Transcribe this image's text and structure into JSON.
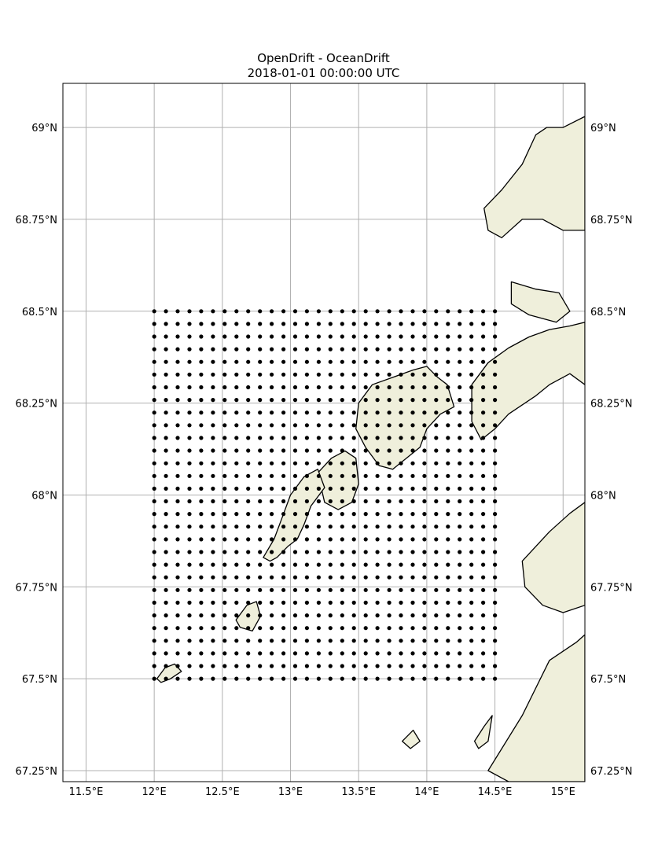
{
  "title": "OpenDrift - OceanDrift",
  "subtitle": "2018-01-01 00:00:00 UTC",
  "colors": {
    "land": "#efefdb",
    "coast": "#000000",
    "grid": "#b0b0b0",
    "particle": "#000000"
  },
  "map": {
    "lon_range": [
      11.33,
      15.16
    ],
    "lat_range": [
      67.22,
      69.12
    ],
    "grid": true,
    "lon_ticks": [
      11.5,
      12.0,
      12.5,
      13.0,
      13.5,
      14.0,
      14.5,
      15.0
    ],
    "lon_tick_labels": [
      "11.5°E",
      "12°E",
      "12.5°E",
      "13°E",
      "13.5°E",
      "14°E",
      "14.5°E",
      "15°E"
    ],
    "lat_ticks": [
      69.0,
      68.75,
      68.5,
      68.25,
      68.0,
      67.75,
      67.5,
      67.25
    ],
    "lat_tick_labels": [
      "69°N",
      "68.75°N",
      "68.5°N",
      "68.25°N",
      "68°N",
      "67.75°N",
      "67.5°N",
      "67.25°N"
    ]
  },
  "particles": {
    "lon_start": 12.0,
    "lon_end": 14.5,
    "lon_count": 30,
    "lat_start": 67.5,
    "lat_end": 68.5,
    "lat_count": 30
  },
  "land_polygons": [
    {
      "name": "mainland-north",
      "points": [
        [
          14.55,
          68.83
        ],
        [
          14.7,
          68.9
        ],
        [
          14.8,
          68.98
        ],
        [
          14.88,
          69.0
        ],
        [
          15.0,
          69.0
        ],
        [
          15.16,
          69.03
        ],
        [
          15.16,
          68.72
        ],
        [
          15.0,
          68.72
        ],
        [
          14.85,
          68.75
        ],
        [
          14.7,
          68.75
        ],
        [
          14.55,
          68.7
        ],
        [
          14.45,
          68.72
        ],
        [
          14.42,
          68.78
        ]
      ]
    },
    {
      "name": "island-hinnoya-south",
      "points": [
        [
          14.62,
          68.58
        ],
        [
          14.8,
          68.56
        ],
        [
          14.97,
          68.55
        ],
        [
          15.05,
          68.5
        ],
        [
          14.95,
          68.47
        ],
        [
          14.75,
          68.49
        ],
        [
          14.62,
          68.52
        ]
      ]
    },
    {
      "name": "island-austvagoy",
      "points": [
        [
          14.33,
          68.3
        ],
        [
          14.45,
          68.36
        ],
        [
          14.6,
          68.4
        ],
        [
          14.75,
          68.43
        ],
        [
          14.9,
          68.45
        ],
        [
          15.05,
          68.46
        ],
        [
          15.16,
          68.47
        ],
        [
          15.16,
          68.3
        ],
        [
          15.05,
          68.33
        ],
        [
          14.9,
          68.3
        ],
        [
          14.8,
          68.27
        ],
        [
          14.6,
          68.22
        ],
        [
          14.5,
          68.18
        ],
        [
          14.4,
          68.15
        ],
        [
          14.33,
          68.2
        ]
      ]
    },
    {
      "name": "island-vestvagoy",
      "points": [
        [
          13.5,
          68.25
        ],
        [
          13.6,
          68.3
        ],
        [
          13.75,
          68.32
        ],
        [
          13.9,
          68.34
        ],
        [
          14.0,
          68.35
        ],
        [
          14.08,
          68.32
        ],
        [
          14.15,
          68.3
        ],
        [
          14.2,
          68.24
        ],
        [
          14.1,
          68.22
        ],
        [
          14.0,
          68.18
        ],
        [
          13.95,
          68.13
        ],
        [
          13.85,
          68.1
        ],
        [
          13.75,
          68.07
        ],
        [
          13.65,
          68.08
        ],
        [
          13.55,
          68.13
        ],
        [
          13.48,
          68.18
        ]
      ]
    },
    {
      "name": "island-flakstadoy",
      "points": [
        [
          13.2,
          68.06
        ],
        [
          13.3,
          68.1
        ],
        [
          13.4,
          68.12
        ],
        [
          13.48,
          68.1
        ],
        [
          13.5,
          68.03
        ],
        [
          13.45,
          67.98
        ],
        [
          13.35,
          67.96
        ],
        [
          13.25,
          67.98
        ]
      ]
    },
    {
      "name": "island-moskenesoy",
      "points": [
        [
          12.8,
          67.83
        ],
        [
          12.88,
          67.88
        ],
        [
          12.95,
          67.95
        ],
        [
          13.0,
          68.0
        ],
        [
          13.1,
          68.05
        ],
        [
          13.2,
          68.07
        ],
        [
          13.25,
          68.02
        ],
        [
          13.15,
          67.97
        ],
        [
          13.1,
          67.92
        ],
        [
          13.05,
          67.88
        ],
        [
          12.98,
          67.86
        ],
        [
          12.9,
          67.83
        ],
        [
          12.85,
          67.82
        ]
      ]
    },
    {
      "name": "island-vaeroy",
      "points": [
        [
          12.6,
          67.66
        ],
        [
          12.68,
          67.7
        ],
        [
          12.75,
          67.71
        ],
        [
          12.78,
          67.67
        ],
        [
          12.72,
          67.63
        ],
        [
          12.63,
          67.64
        ]
      ]
    },
    {
      "name": "island-rost",
      "points": [
        [
          12.02,
          67.5
        ],
        [
          12.08,
          67.53
        ],
        [
          12.15,
          67.54
        ],
        [
          12.2,
          67.52
        ],
        [
          12.12,
          67.5
        ],
        [
          12.05,
          67.49
        ]
      ]
    },
    {
      "name": "mainland-bodo",
      "points": [
        [
          14.45,
          67.25
        ],
        [
          14.7,
          67.4
        ],
        [
          14.9,
          67.55
        ],
        [
          15.1,
          67.6
        ],
        [
          15.16,
          67.62
        ],
        [
          15.16,
          67.22
        ],
        [
          14.6,
          67.22
        ]
      ]
    },
    {
      "name": "mainland-middle",
      "points": [
        [
          14.7,
          67.82
        ],
        [
          14.9,
          67.9
        ],
        [
          15.05,
          67.95
        ],
        [
          15.16,
          67.98
        ],
        [
          15.16,
          67.7
        ],
        [
          15.0,
          67.68
        ],
        [
          14.85,
          67.7
        ],
        [
          14.72,
          67.75
        ]
      ]
    },
    {
      "name": "island-landego",
      "points": [
        [
          14.35,
          67.33
        ],
        [
          14.42,
          67.37
        ],
        [
          14.48,
          67.4
        ],
        [
          14.45,
          67.33
        ],
        [
          14.38,
          67.31
        ]
      ]
    },
    {
      "name": "island-givaer",
      "points": [
        [
          13.82,
          67.33
        ],
        [
          13.9,
          67.36
        ],
        [
          13.95,
          67.33
        ],
        [
          13.88,
          67.31
        ]
      ]
    }
  ]
}
